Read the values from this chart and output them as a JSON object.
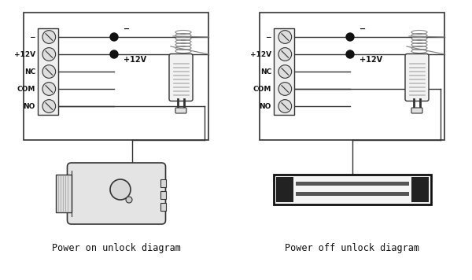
{
  "bg_color": "#ffffff",
  "lc": "#333333",
  "lc_dark": "#111111",
  "label1": "Power on unlock diagram",
  "label2": "Power off unlock diagram",
  "minus_label": "−",
  "plus12v_label": "+12V",
  "fig_width": 6.0,
  "fig_height": 3.56,
  "dpi": 100,
  "term_labels": [
    "−",
    "+12V",
    "NC",
    "COM",
    "NO"
  ],
  "gray_cable": "#999999",
  "adapter_fill": "#f0f0f0",
  "lock_fill": "#e8e8e8"
}
